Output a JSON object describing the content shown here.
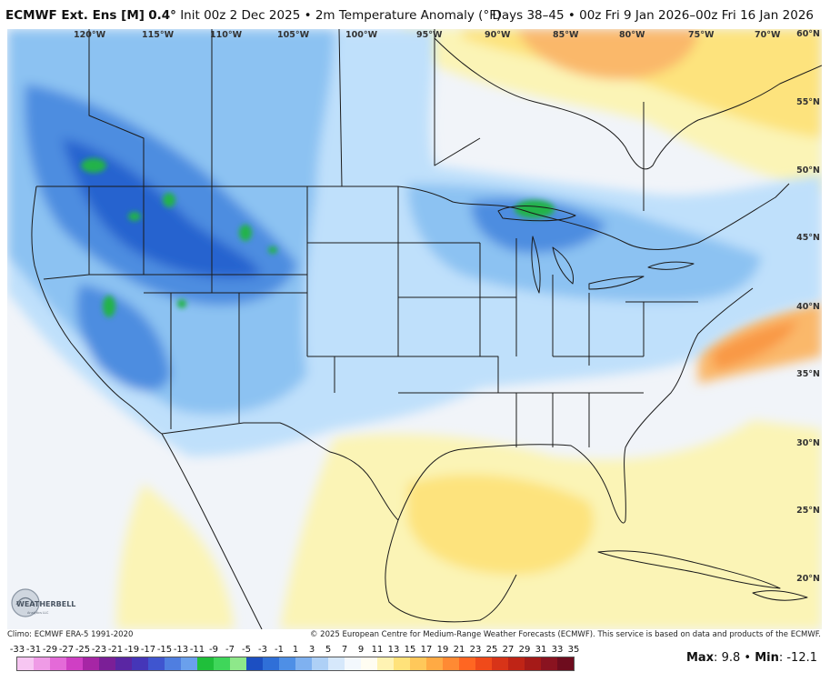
{
  "header": {
    "model": "ECMWF Ext. Ens [M]",
    "resolution": "0.4°",
    "details": "Init 00z 2 Dec 2025 • 2m Temperature Anomaly (°F)",
    "period": "Days 38–45 • 00z Fri 9 Jan 2026–00z Fri 16 Jan 2026"
  },
  "longitude_labels": [
    "120°W",
    "115°W",
    "110°W",
    "105°W",
    "100°W",
    "95°W",
    "90°W",
    "85°W",
    "80°W",
    "75°W",
    "70°W"
  ],
  "latitude_labels": [
    "60°N",
    "55°N",
    "50°N",
    "45°N",
    "40°N",
    "35°N",
    "30°N",
    "25°N",
    "20°N"
  ],
  "footer": {
    "climo": "Climo: ECMWF ERA-5 1991-2020",
    "copyright": "© 2025 European Centre for Medium-Range Weather Forecasts (ECMWF). This service is based on data and products of the ECMWF."
  },
  "logo": {
    "text": "WEATHERBELL",
    "sub": "Analytics LLC"
  },
  "legend": {
    "labels": [
      "-33",
      "-31",
      "-29",
      "-27",
      "-25",
      "-23",
      "-21",
      "-19",
      "-17",
      "-15",
      "-13",
      "-11",
      "-9",
      "-7",
      "-5",
      "-3",
      "-1",
      "1",
      "3",
      "5",
      "7",
      "9",
      "11",
      "13",
      "15",
      "17",
      "19",
      "21",
      "23",
      "25",
      "27",
      "29",
      "31",
      "33",
      "35"
    ],
    "colors": [
      "#f7c6f2",
      "#ef9be6",
      "#e46ad8",
      "#cf3fc4",
      "#a626a5",
      "#7b1f97",
      "#5a26a3",
      "#4536b8",
      "#3f55cf",
      "#4f7ee0",
      "#6aa0ec",
      "#1fbf3a",
      "#3fd65a",
      "#8ee88a",
      "#1c4fc2",
      "#2f6fd8",
      "#4e8fe6",
      "#7fb1f0",
      "#aed0f6",
      "#d6e8fb",
      "#f3f8fd",
      "#fffdf2",
      "#fff3b3",
      "#ffe27a",
      "#ffc85a",
      "#ffaa44",
      "#ff8a33",
      "#ff6622",
      "#f04a1a",
      "#d83418",
      "#bf2416",
      "#a51a18",
      "#8a1320",
      "#6e0c1e"
    ]
  },
  "stats": {
    "max_label": "Max",
    "max_value": "9.8",
    "min_label": "Min",
    "min_value": "-12.1"
  },
  "colors": {
    "ocean": "#f1f4f9",
    "cold_light": "#bfe0fb",
    "cold_mid": "#8cc2f2",
    "cold_deep": "#4d8de0",
    "cold_core": "#2563cf",
    "extreme_cold": "#22b34a",
    "warm_light": "#fbf4b6",
    "warm_mid": "#fde37d",
    "warm_core": "#fab86a",
    "warm_hot": "#f99845"
  }
}
